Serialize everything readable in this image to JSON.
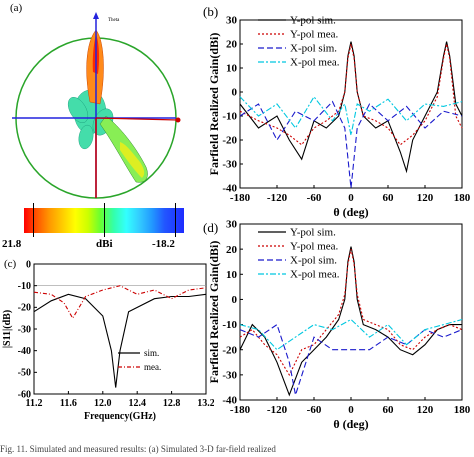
{
  "labels": {
    "a": "(a)",
    "b": "(b)",
    "c": "(c)",
    "d": "(d)",
    "theta_axis": "Theta",
    "cb_min": "21.8",
    "cb_unit": "dBi",
    "cb_max": "-18.2",
    "footer": "Fig. 11.   Simulated and measured results: (a) Simulated 3-D far-field realized"
  },
  "chart_data": [
    {
      "id": "b",
      "type": "line",
      "ylabel": "Farfield Realized Gain(dBi)",
      "xlabel": "θ (deg)",
      "xlim": [
        -180,
        180
      ],
      "ylim": [
        -40,
        30
      ],
      "xticks": [
        "-180",
        "-120",
        "-60",
        "0",
        "60",
        "120",
        "180"
      ],
      "yticks": [
        "30",
        "20",
        "10",
        "0",
        "-10",
        "-20",
        "-30",
        "-40"
      ],
      "legend_position": "top-right",
      "series": [
        {
          "name": "Y-pol sim.",
          "color": "#000000",
          "dash": "",
          "x": [
            -180,
            -150,
            -120,
            -100,
            -80,
            -60,
            -40,
            -20,
            -10,
            -5,
            0,
            5,
            10,
            20,
            40,
            60,
            80,
            90,
            100,
            120,
            140,
            150,
            155,
            160,
            170,
            180
          ],
          "y": [
            -5,
            -15,
            -10,
            -20,
            -28,
            -12,
            -15,
            -10,
            0,
            15,
            21,
            15,
            0,
            -10,
            -15,
            -12,
            -25,
            -33,
            -20,
            -10,
            0,
            15,
            21,
            15,
            -5,
            -10
          ]
        },
        {
          "name": "Y-pol mea.",
          "color": "#cc0000",
          "dash": "2,2",
          "x": [
            -180,
            -150,
            -120,
            -100,
            -80,
            -60,
            -40,
            -20,
            -10,
            -5,
            0,
            5,
            10,
            20,
            40,
            60,
            80,
            100,
            120,
            140,
            150,
            155,
            160,
            170,
            180
          ],
          "y": [
            -8,
            -12,
            -15,
            -18,
            -22,
            -15,
            -12,
            -8,
            0,
            14,
            20,
            14,
            0,
            -10,
            -12,
            -15,
            -22,
            -18,
            -12,
            -2,
            14,
            20,
            14,
            -10,
            -15
          ]
        },
        {
          "name": "X-pol sim.",
          "color": "#1a1acc",
          "dash": "6,3",
          "x": [
            -180,
            -150,
            -120,
            -90,
            -60,
            -30,
            -10,
            0,
            10,
            30,
            60,
            90,
            120,
            150,
            180
          ],
          "y": [
            -10,
            -5,
            -20,
            -8,
            -12,
            -4,
            -15,
            -40,
            -15,
            -5,
            -12,
            -6,
            -15,
            -8,
            -10
          ]
        },
        {
          "name": "X-pol mea.",
          "color": "#00c8e0",
          "dash": "6,2,2,2",
          "x": [
            -180,
            -150,
            -120,
            -90,
            -60,
            -30,
            -10,
            0,
            10,
            30,
            60,
            90,
            120,
            150,
            180
          ],
          "y": [
            -2,
            -10,
            -5,
            -15,
            -2,
            -12,
            -5,
            -18,
            -5,
            -8,
            -3,
            -12,
            -5,
            -6,
            -4
          ]
        }
      ]
    },
    {
      "id": "c",
      "type": "line",
      "ylabel": "|S11|(dB)",
      "xlabel": "Frequency(GHz)",
      "xlim": [
        11.2,
        13.2
      ],
      "ylim": [
        -60,
        0
      ],
      "xticks": [
        "11.2",
        "11.6",
        "12.0",
        "12.4",
        "12.8",
        "13.2"
      ],
      "yticks": [
        "0",
        "-10",
        "-20",
        "-30",
        "-40",
        "-50",
        "-60"
      ],
      "legend_position": "bottom-right",
      "series": [
        {
          "name": "sim.",
          "color": "#000000",
          "dash": "",
          "x": [
            11.2,
            11.4,
            11.6,
            11.8,
            12.0,
            12.1,
            12.15,
            12.2,
            12.3,
            12.6,
            12.8,
            13.0,
            13.2
          ],
          "y": [
            -22,
            -17,
            -14,
            -16,
            -24,
            -40,
            -57,
            -40,
            -22,
            -16,
            -15,
            -15,
            -14
          ]
        },
        {
          "name": "mea.",
          "color": "#cc0000",
          "dash": "4,2,1,2",
          "x": [
            11.2,
            11.4,
            11.55,
            11.65,
            11.8,
            12.0,
            12.2,
            12.4,
            12.6,
            12.8,
            13.0,
            13.2
          ],
          "y": [
            -13,
            -14,
            -18,
            -25,
            -15,
            -12,
            -10,
            -14,
            -12,
            -16,
            -12,
            -11
          ]
        }
      ]
    },
    {
      "id": "d",
      "type": "line",
      "ylabel": "Farfield Realized Gain(dBi)",
      "xlabel": "θ (deg)",
      "xlim": [
        -180,
        180
      ],
      "ylim": [
        -40,
        30
      ],
      "xticks": [
        "-180",
        "-120",
        "-60",
        "0",
        "60",
        "120",
        "180"
      ],
      "yticks": [
        "30",
        "20",
        "10",
        "0",
        "-10",
        "-20",
        "-30",
        "-40"
      ],
      "legend_position": "top-right",
      "series": [
        {
          "name": "Y-pol sim.",
          "color": "#000000",
          "dash": "",
          "x": [
            -180,
            -160,
            -140,
            -120,
            -100,
            -80,
            -60,
            -40,
            -20,
            -10,
            -5,
            0,
            5,
            10,
            20,
            40,
            60,
            80,
            100,
            120,
            140,
            160,
            180
          ],
          "y": [
            -20,
            -10,
            -15,
            -25,
            -38,
            -25,
            -20,
            -15,
            -8,
            0,
            15,
            21,
            15,
            0,
            -10,
            -12,
            -15,
            -20,
            -22,
            -18,
            -12,
            -10,
            -10
          ]
        },
        {
          "name": "Y-pol mea.",
          "color": "#cc0000",
          "dash": "2,2",
          "x": [
            -180,
            -160,
            -140,
            -120,
            -100,
            -80,
            -60,
            -40,
            -20,
            -10,
            -5,
            0,
            5,
            10,
            20,
            40,
            60,
            80,
            100,
            120,
            140,
            160,
            180
          ],
          "y": [
            -15,
            -12,
            -18,
            -22,
            -30,
            -20,
            -18,
            -12,
            -6,
            2,
            14,
            20,
            14,
            2,
            -8,
            -10,
            -12,
            -18,
            -20,
            -15,
            -12,
            -10,
            -12
          ]
        },
        {
          "name": "X-pol sim.",
          "color": "#1a1acc",
          "dash": "6,3",
          "x": [
            -180,
            -150,
            -120,
            -100,
            -90,
            -60,
            -30,
            0,
            30,
            60,
            90,
            120,
            150,
            180
          ],
          "y": [
            -12,
            -15,
            -10,
            -25,
            -38,
            -15,
            -20,
            -20,
            -20,
            -15,
            -18,
            -12,
            -15,
            -12
          ]
        },
        {
          "name": "X-pol mea.",
          "color": "#00c8e0",
          "dash": "6,2,2,2",
          "x": [
            -180,
            -150,
            -120,
            -90,
            -60,
            -30,
            0,
            30,
            60,
            90,
            120,
            150,
            180
          ],
          "y": [
            -10,
            -12,
            -20,
            -15,
            -10,
            -12,
            -8,
            -15,
            -10,
            -18,
            -12,
            -10,
            -8
          ]
        }
      ]
    }
  ]
}
